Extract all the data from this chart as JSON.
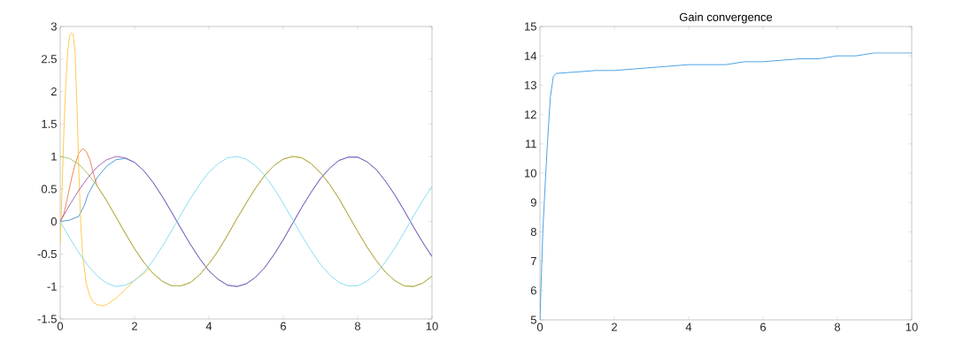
{
  "chart_data": [
    {
      "type": "line",
      "xlim": [
        0,
        10
      ],
      "ylim": [
        -1.5,
        3
      ],
      "xticks": [
        0,
        2,
        4,
        6,
        8,
        10
      ],
      "yticks": [
        -1.5,
        -1,
        -0.5,
        0,
        0.5,
        1,
        1.5,
        2,
        2.5,
        3
      ],
      "series": [
        {
          "color": "#3b93d6",
          "x": [
            0,
            0.25,
            0.5,
            0.65,
            0.75,
            1,
            1.25,
            1.5,
            1.75,
            2,
            2.25,
            2.5,
            2.75,
            3,
            3.25,
            3.5,
            3.75,
            4,
            4.25,
            4.5,
            4.75,
            5,
            5.25,
            5.5,
            5.75,
            6,
            6.25,
            6.5,
            6.75,
            7,
            7.25,
            7.5,
            7.75,
            8,
            8.25,
            8.5,
            8.75,
            9,
            9.25,
            9.5,
            9.75,
            10
          ],
          "values": [
            0,
            0.02,
            0.08,
            0.25,
            0.42,
            0.68,
            0.85,
            0.95,
            0.97,
            0.91,
            0.78,
            0.6,
            0.38,
            0.14,
            -0.11,
            -0.35,
            -0.57,
            -0.76,
            -0.89,
            -0.98,
            -1.0,
            -0.96,
            -0.86,
            -0.71,
            -0.51,
            -0.28,
            -0.03,
            0.22,
            0.45,
            0.66,
            0.82,
            0.94,
            0.99,
            0.99,
            0.92,
            0.8,
            0.62,
            0.41,
            0.17,
            -0.08,
            -0.32,
            -0.54
          ]
        },
        {
          "color": "#f0784a",
          "x": [
            0,
            0.1,
            0.2,
            0.3,
            0.4,
            0.5,
            0.6,
            0.7,
            0.8,
            0.9,
            1,
            1.25,
            1.5,
            1.75,
            2,
            2.25,
            2.5,
            2.75,
            3,
            3.25,
            3.5,
            3.75,
            4,
            4.25,
            4.5,
            4.75,
            5,
            5.25,
            5.5,
            5.75,
            6,
            6.25,
            6.5,
            6.75,
            7,
            7.25,
            7.5,
            7.75,
            8,
            8.25,
            8.5,
            8.75,
            9,
            9.25,
            9.5,
            9.75,
            10
          ],
          "values": [
            0,
            0.12,
            0.38,
            0.65,
            0.88,
            1.05,
            1.12,
            1.08,
            0.95,
            0.72,
            0.54,
            0.32,
            0.07,
            -0.18,
            -0.42,
            -0.63,
            -0.8,
            -0.92,
            -0.99,
            -0.99,
            -0.94,
            -0.82,
            -0.65,
            -0.45,
            -0.21,
            0.04,
            0.28,
            0.51,
            0.71,
            0.86,
            0.96,
            1.0,
            0.98,
            0.89,
            0.75,
            0.57,
            0.35,
            0.1,
            -0.15,
            -0.39,
            -0.6,
            -0.78,
            -0.91,
            -0.99,
            -1.0,
            -0.95,
            -0.84
          ]
        },
        {
          "color": "#ffc43d",
          "x": [
            0,
            0.05,
            0.1,
            0.15,
            0.2,
            0.25,
            0.3,
            0.35,
            0.4,
            0.45,
            0.5,
            0.55,
            0.6,
            0.7,
            0.8,
            0.9,
            1,
            1.14,
            1.25,
            1.5,
            1.75,
            2,
            2.25,
            2.4
          ],
          "values": [
            -0.35,
            0.5,
            1.4,
            2.1,
            2.6,
            2.85,
            2.9,
            2.88,
            2.6,
            1.8,
            0.8,
            0.0,
            -0.5,
            -0.95,
            -1.15,
            -1.25,
            -1.28,
            -1.3,
            -1.28,
            -1.18,
            -1.05,
            -0.9,
            -0.8,
            -0.72
          ]
        },
        {
          "color": "#9b59b6",
          "x": [
            0,
            0.25,
            0.5,
            0.75,
            1,
            1.25,
            1.5,
            1.75,
            2,
            2.25,
            2.5,
            2.75,
            3,
            3.25,
            3.5,
            3.75,
            4,
            4.25,
            4.5,
            4.75,
            5,
            5.25,
            5.5,
            5.75,
            6,
            6.25,
            6.5,
            6.75,
            7,
            7.25,
            7.5,
            7.75,
            8,
            8.25,
            8.5,
            8.75,
            9,
            9.25,
            9.5,
            9.75,
            10
          ],
          "values": [
            0,
            0.25,
            0.48,
            0.68,
            0.84,
            0.95,
            1.0,
            0.98,
            0.91,
            0.78,
            0.6,
            0.38,
            0.14,
            -0.11,
            -0.35,
            -0.57,
            -0.76,
            -0.89,
            -0.98,
            -1.0,
            -0.96,
            -0.86,
            -0.71,
            -0.51,
            -0.28,
            -0.03,
            0.22,
            0.45,
            0.66,
            0.82,
            0.94,
            0.99,
            0.99,
            0.92,
            0.8,
            0.62,
            0.41,
            0.17,
            -0.08,
            -0.32,
            -0.54
          ]
        },
        {
          "color": "#9cc34b",
          "x": [
            0,
            0.25,
            0.5,
            0.75,
            1,
            1.25,
            1.5,
            1.75,
            2,
            2.25,
            2.5,
            2.75,
            3,
            3.25,
            3.5,
            3.75,
            4,
            4.25,
            4.5,
            4.75,
            5,
            5.25,
            5.5,
            5.75,
            6,
            6.25,
            6.5,
            6.75,
            7,
            7.25,
            7.5,
            7.75,
            8,
            8.25,
            8.5,
            8.75,
            9,
            9.25,
            9.5,
            9.75,
            10
          ],
          "values": [
            1.0,
            0.97,
            0.88,
            0.73,
            0.54,
            0.32,
            0.07,
            -0.18,
            -0.42,
            -0.63,
            -0.8,
            -0.92,
            -0.99,
            -0.99,
            -0.94,
            -0.82,
            -0.65,
            -0.45,
            -0.21,
            0.04,
            0.28,
            0.51,
            0.71,
            0.86,
            0.96,
            1.0,
            0.98,
            0.89,
            0.75,
            0.57,
            0.35,
            0.1,
            -0.15,
            -0.39,
            -0.6,
            -0.78,
            -0.91,
            -0.99,
            -1.0,
            -0.95,
            -0.84
          ]
        },
        {
          "color": "#7fd8f0",
          "x": [
            0,
            0.25,
            0.5,
            0.75,
            1,
            1.25,
            1.5,
            1.75,
            2,
            2.25,
            2.5,
            2.75,
            3,
            3.25,
            3.5,
            3.75,
            4,
            4.25,
            4.5,
            4.75,
            5,
            5.25,
            5.5,
            5.75,
            6,
            6.25,
            6.5,
            6.75,
            7,
            7.25,
            7.5,
            7.75,
            8,
            8.25,
            8.5,
            8.75,
            9,
            9.25,
            9.5,
            9.75,
            10
          ],
          "values": [
            0,
            -0.25,
            -0.48,
            -0.68,
            -0.84,
            -0.95,
            -1.0,
            -0.98,
            -0.91,
            -0.78,
            -0.6,
            -0.38,
            -0.14,
            0.11,
            0.35,
            0.57,
            0.76,
            0.89,
            0.98,
            1.0,
            0.96,
            0.86,
            0.71,
            0.51,
            0.28,
            0.03,
            -0.22,
            -0.45,
            -0.66,
            -0.82,
            -0.94,
            -0.99,
            -0.99,
            -0.92,
            -0.8,
            -0.62,
            -0.41,
            -0.17,
            0.08,
            0.32,
            0.54
          ]
        }
      ]
    },
    {
      "type": "line",
      "title": "Gain convergence",
      "xlim": [
        0,
        10
      ],
      "ylim": [
        5,
        15
      ],
      "xticks": [
        0,
        2,
        4,
        6,
        8,
        10
      ],
      "yticks": [
        5,
        6,
        7,
        8,
        9,
        10,
        11,
        12,
        13,
        14,
        15
      ],
      "series": [
        {
          "color": "#3a9ae0",
          "x": [
            0,
            0.04,
            0.08,
            0.14,
            0.2,
            0.28,
            0.36,
            0.44,
            1.5,
            2,
            3,
            4,
            5,
            5.5,
            6,
            7,
            7.5,
            8,
            8.5,
            9,
            10
          ],
          "values": [
            5,
            6.6,
            8.1,
            9.6,
            11.0,
            12.6,
            13.3,
            13.4,
            13.5,
            13.5,
            13.6,
            13.7,
            13.7,
            13.8,
            13.8,
            13.9,
            13.9,
            14.0,
            14.0,
            14.1,
            14.1
          ]
        }
      ]
    }
  ]
}
